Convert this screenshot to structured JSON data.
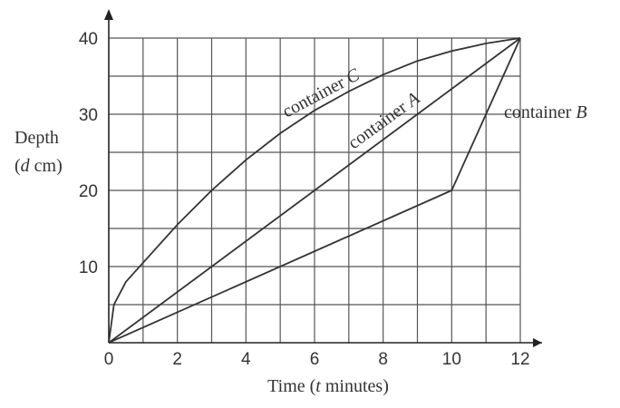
{
  "chart_data": {
    "type": "line",
    "xlabel": "Time (t minutes)",
    "xlabel_parts": {
      "before": "Time (",
      "var": "t",
      "after": " minutes)"
    },
    "ylabel_lines": [
      "Depth",
      "(d cm)"
    ],
    "ylabel_line2_parts": {
      "before": "(",
      "var": "d",
      "after": " cm)"
    },
    "xlim": [
      0,
      12
    ],
    "ylim": [
      0,
      40
    ],
    "x_ticks": [
      0,
      2,
      4,
      6,
      8,
      10,
      12
    ],
    "y_ticks": [
      10,
      20,
      30,
      40
    ],
    "grid": true,
    "series": [
      {
        "name": "container A",
        "label_parts": {
          "text": "container ",
          "var": "A"
        },
        "points": [
          [
            0,
            0
          ],
          [
            12,
            40
          ]
        ]
      },
      {
        "name": "container B",
        "label_parts": {
          "text": "container ",
          "var": "B"
        },
        "points": [
          [
            0,
            0
          ],
          [
            10,
            20
          ],
          [
            12,
            40
          ]
        ]
      },
      {
        "name": "container C",
        "label_parts": {
          "text": "container ",
          "var": "C"
        },
        "points": [
          [
            0,
            0
          ],
          [
            0.15,
            5
          ],
          [
            0.5,
            8
          ],
          [
            1,
            10.5
          ],
          [
            2,
            15.5
          ],
          [
            3,
            20
          ],
          [
            4,
            24
          ],
          [
            5,
            27.5
          ],
          [
            6,
            30.5
          ],
          [
            7,
            33
          ],
          [
            8,
            35.2
          ],
          [
            9,
            37
          ],
          [
            10,
            38.3
          ],
          [
            11,
            39.3
          ],
          [
            12,
            40
          ]
        ]
      }
    ]
  }
}
